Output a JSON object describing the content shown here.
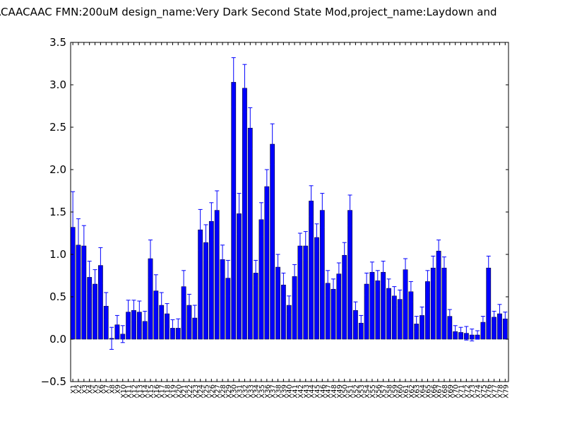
{
  "chart_data": {
    "type": "bar",
    "title": "ACAACAAC  FMN:200uM  design_name:Very Dark Second State Mod,project_name:Laydown and",
    "xlabel": "",
    "ylabel": "",
    "ylim": [
      -0.5,
      3.5
    ],
    "yticks": [
      "−0.5",
      "0.0",
      "0.5",
      "1.0",
      "1.5",
      "2.0",
      "2.5",
      "3.0",
      "3.5"
    ],
    "bar_color": "#0000ff",
    "error_color": "#0000ff",
    "grid": false,
    "categories": [
      "X1",
      "X2",
      "X3",
      "X4",
      "X5",
      "X6",
      "X7",
      "X8",
      "X9",
      "X10",
      "X11",
      "X12",
      "X13",
      "X14",
      "X15",
      "X16",
      "X17",
      "X18",
      "X19",
      "X20",
      "X21",
      "X22",
      "X23",
      "X24",
      "X25",
      "X26",
      "X27",
      "X28",
      "X29",
      "X30",
      "X31",
      "X32",
      "X33",
      "X34",
      "X35",
      "X36",
      "X37",
      "X38",
      "X39",
      "X40",
      "X41",
      "X42",
      "X43",
      "X44",
      "X45",
      "X46",
      "X47",
      "X48",
      "X49",
      "X50",
      "X51",
      "X52",
      "X53",
      "X54",
      "X55",
      "X56",
      "X57",
      "X58",
      "X59",
      "X60",
      "X61",
      "X62",
      "X63",
      "X64",
      "X65",
      "X66",
      "X67",
      "X68",
      "X69",
      "X70",
      "X71",
      "X72",
      "X73",
      "X74",
      "X75",
      "X76",
      "X77",
      "X78",
      "X79"
    ],
    "values": [
      1.32,
      1.11,
      1.1,
      0.73,
      0.65,
      0.87,
      0.39,
      0.01,
      0.17,
      0.06,
      0.32,
      0.34,
      0.32,
      0.21,
      0.95,
      0.57,
      0.4,
      0.3,
      0.13,
      0.13,
      0.62,
      0.4,
      0.25,
      1.29,
      1.14,
      1.39,
      1.52,
      0.94,
      0.72,
      3.03,
      1.48,
      2.96,
      2.49,
      0.78,
      1.41,
      1.8,
      2.3,
      0.85,
      0.64,
      0.4,
      0.74,
      1.1,
      1.1,
      1.63,
      1.2,
      1.52,
      0.66,
      0.59,
      0.77,
      0.99,
      1.52,
      0.34,
      0.19,
      0.65,
      0.79,
      0.69,
      0.79,
      0.6,
      0.51,
      0.47,
      0.82,
      0.56,
      0.18,
      0.28,
      0.68,
      0.84,
      1.04,
      0.84,
      0.27,
      0.09,
      0.08,
      0.07,
      0.05,
      0.05,
      0.2,
      0.84,
      0.26,
      0.3,
      0.24
    ],
    "errors": [
      0.42,
      0.31,
      0.24,
      0.19,
      0.17,
      0.21,
      0.16,
      0.13,
      0.11,
      0.1,
      0.14,
      0.12,
      0.13,
      0.12,
      0.22,
      0.19,
      0.15,
      0.12,
      0.1,
      0.11,
      0.19,
      0.13,
      0.15,
      0.24,
      0.21,
      0.22,
      0.23,
      0.17,
      0.21,
      0.29,
      0.24,
      0.28,
      0.24,
      0.15,
      0.2,
      0.2,
      0.24,
      0.15,
      0.14,
      0.11,
      0.14,
      0.15,
      0.17,
      0.18,
      0.16,
      0.2,
      0.15,
      0.12,
      0.13,
      0.15,
      0.18,
      0.1,
      0.09,
      0.13,
      0.12,
      0.12,
      0.13,
      0.11,
      0.11,
      0.11,
      0.13,
      0.12,
      0.09,
      0.1,
      0.13,
      0.14,
      0.13,
      0.13,
      0.08,
      0.07,
      0.06,
      0.08,
      0.07,
      0.05,
      0.07,
      0.14,
      0.07,
      0.11,
      0.08
    ]
  }
}
